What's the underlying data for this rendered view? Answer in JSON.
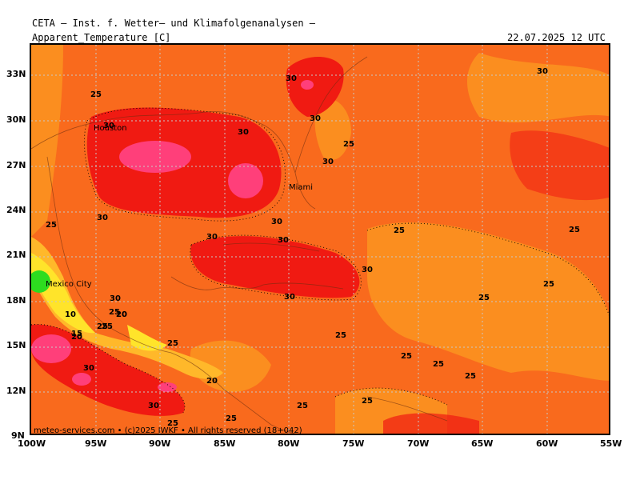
{
  "header": {
    "title": "CETA — Inst. f. Wetter— und Klimafolgenanalysen —",
    "variable": "Apparent_Temperature [C]",
    "valid_time": "22.07.2025 12 UTC"
  },
  "footer": {
    "credit": "meteo-services.com • (c)2025 IWKF • All rights reserved (18+042)"
  },
  "axes": {
    "lat_labels": [
      "33N",
      "30N",
      "27N",
      "24N",
      "21N",
      "18N",
      "15N",
      "12N",
      "9N"
    ],
    "lon_labels": [
      "100W",
      "95W",
      "90W",
      "85W",
      "80W",
      "75W",
      "70W",
      "65W",
      "60W",
      "55W"
    ]
  },
  "cities": [
    "Houston",
    "Miami",
    "Mexico City"
  ],
  "contour_labels": [
    "30",
    "25",
    "30",
    "30",
    "30",
    "30",
    "25",
    "30",
    "25",
    "25",
    "30",
    "30",
    "30",
    "25",
    "30",
    "30",
    "30",
    "25",
    "25",
    "25",
    "20",
    "25",
    "30",
    "20",
    "25",
    "25",
    "25",
    "25",
    "25",
    "25",
    "25",
    "25",
    "30",
    "10",
    "15",
    "20",
    "30",
    "25",
    "25",
    "20"
  ],
  "colors": {
    "orange": "#f96a1d",
    "light_orange": "#fb8e1f",
    "red": "#f01a12",
    "magenta": "#ff3f7a",
    "gold": "#ffb82a",
    "yellow": "#ffe42a",
    "green": "#2ddc1f"
  }
}
